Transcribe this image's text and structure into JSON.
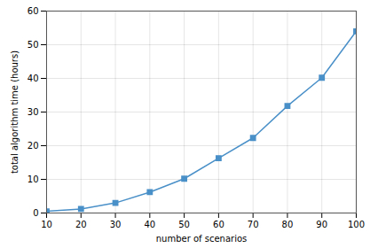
{
  "chart_data": {
    "type": "line",
    "x": [
      10,
      20,
      30,
      40,
      50,
      60,
      70,
      80,
      90,
      100
    ],
    "values": [
      0.5,
      1.2,
      3.0,
      6.2,
      10.2,
      16.3,
      22.3,
      31.8,
      40.2,
      54.0
    ],
    "color": "#4a90c8",
    "marker": "square",
    "xlabel": "number of scenarios",
    "ylabel": "total algorithm time (hours)",
    "xlim": [
      10,
      100
    ],
    "ylim": [
      0,
      60
    ],
    "xticks": [
      10,
      20,
      30,
      40,
      50,
      60,
      70,
      80,
      90,
      100
    ],
    "yticks": [
      0,
      10,
      20,
      30,
      40,
      50,
      60
    ],
    "grid": true
  }
}
